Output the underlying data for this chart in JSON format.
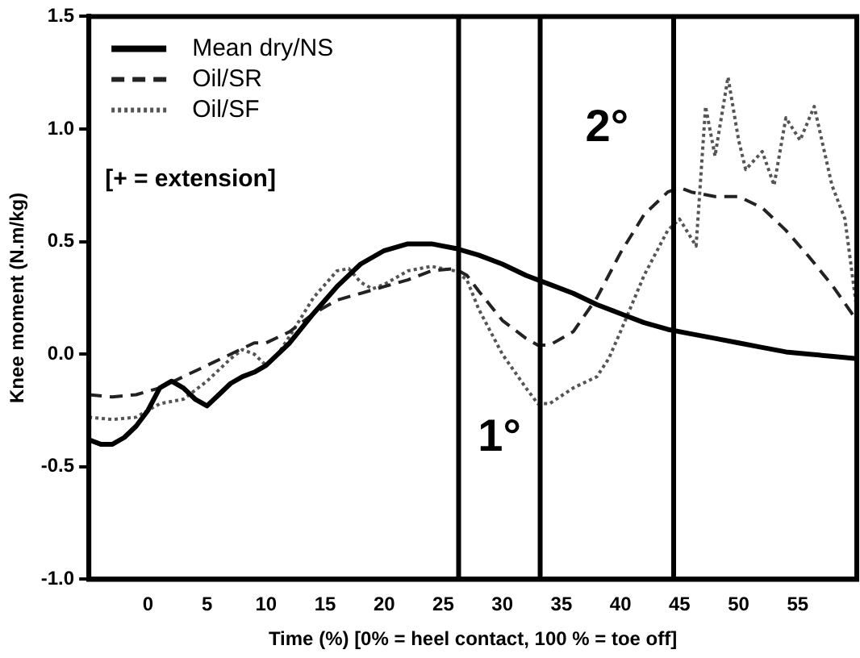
{
  "chart_data": {
    "type": "line",
    "xlabel": "Time (%) [0% = heel contact, 100 % = toe off]",
    "ylabel": "Knee moment (N.m/kg)",
    "xlim": [
      -5,
      60
    ],
    "xticks": [
      0,
      5,
      10,
      15,
      20,
      25,
      30,
      35,
      40,
      45,
      50,
      55
    ],
    "ylim": [
      -1.0,
      1.5
    ],
    "yticks": [
      {
        "value": -1,
        "label": "-1.0"
      },
      {
        "value": -0.5,
        "label": "-0.5"
      },
      {
        "value": 0,
        "label": "0.0"
      },
      {
        "value": 0.5,
        "label": "0.5"
      },
      {
        "value": 1,
        "label": "1.0"
      },
      {
        "value": 1.5,
        "label": "1.5"
      }
    ],
    "grid": false,
    "legend": "top left",
    "marker": "none",
    "series": [
      {
        "name": "Mean dry/NS",
        "color": "#000000",
        "line_style": "solid",
        "x": [
          -5,
          -4,
          -3,
          -2,
          -1,
          0,
          1,
          2,
          3,
          4,
          5,
          6,
          7,
          8,
          9,
          10,
          12,
          14,
          16,
          18,
          20,
          22,
          24,
          26,
          28,
          30,
          32,
          34,
          36,
          38,
          40,
          42,
          44,
          46,
          48,
          50,
          52,
          54,
          56,
          58,
          60
        ],
        "values": [
          -0.38,
          -0.4,
          -0.4,
          -0.37,
          -0.32,
          -0.25,
          -0.15,
          -0.12,
          -0.15,
          -0.2,
          -0.23,
          -0.18,
          -0.13,
          -0.1,
          -0.08,
          -0.05,
          0.05,
          0.18,
          0.3,
          0.4,
          0.46,
          0.49,
          0.49,
          0.47,
          0.44,
          0.4,
          0.35,
          0.31,
          0.27,
          0.22,
          0.18,
          0.14,
          0.11,
          0.09,
          0.07,
          0.05,
          0.03,
          0.01,
          0,
          -0.01,
          -0.02
        ]
      },
      {
        "name": "Oil/SR",
        "color": "#222222",
        "line_style": "dashed",
        "x": [
          -5,
          -3,
          -1,
          1,
          3,
          5,
          7,
          9,
          10,
          12,
          14,
          16,
          18,
          20,
          22,
          24,
          26,
          27,
          28,
          30,
          32,
          33,
          34,
          36,
          38,
          40,
          42,
          44,
          45,
          46,
          48,
          50,
          52,
          54,
          56,
          58,
          60
        ],
        "values": [
          -0.18,
          -0.19,
          -0.18,
          -0.15,
          -0.1,
          -0.05,
          0,
          0.05,
          0.05,
          0.1,
          0.18,
          0.24,
          0.27,
          0.3,
          0.33,
          0.37,
          0.38,
          0.35,
          0.28,
          0.15,
          0.07,
          0.04,
          0.04,
          0.1,
          0.25,
          0.45,
          0.62,
          0.72,
          0.74,
          0.72,
          0.7,
          0.7,
          0.65,
          0.55,
          0.43,
          0.3,
          0.15
        ]
      },
      {
        "name": "Oil/SF",
        "color": "#555555",
        "line_style": "dotted",
        "x": [
          -5,
          -3,
          -1,
          1,
          3,
          5,
          7,
          8,
          9,
          10,
          11,
          12,
          14,
          16,
          17,
          18,
          19,
          20,
          22,
          24,
          26,
          27,
          28,
          30,
          32,
          33,
          34,
          36,
          38,
          39,
          40,
          42,
          44,
          45,
          46.4,
          47.2,
          48,
          49.1,
          50,
          50.6,
          52,
          53,
          54,
          55.2,
          56.4,
          57.9,
          59,
          60
        ],
        "values": [
          -0.28,
          -0.29,
          -0.28,
          -0.22,
          -0.2,
          -0.12,
          -0.02,
          0.02,
          0,
          -0.05,
          0,
          0.08,
          0.25,
          0.37,
          0.38,
          0.32,
          0.29,
          0.31,
          0.37,
          0.39,
          0.37,
          0.33,
          0.2,
          0,
          -0.15,
          -0.22,
          -0.22,
          -0.15,
          -0.1,
          -0.02,
          0.1,
          0.35,
          0.55,
          0.6,
          0.48,
          1.1,
          0.88,
          1.23,
          0.95,
          0.82,
          0.9,
          0.75,
          1.05,
          0.95,
          1.1,
          0.75,
          0.6,
          0.2
        ]
      }
    ],
    "ref_lines": [
      {
        "axis": "x",
        "value": 26.3,
        "color": "#000000"
      },
      {
        "axis": "x",
        "value": 33.2,
        "color": "#000000"
      },
      {
        "axis": "x",
        "value": 44.5,
        "color": "#000000"
      }
    ],
    "annotations": [
      "[+ = extension]",
      "1°",
      "2°"
    ]
  }
}
